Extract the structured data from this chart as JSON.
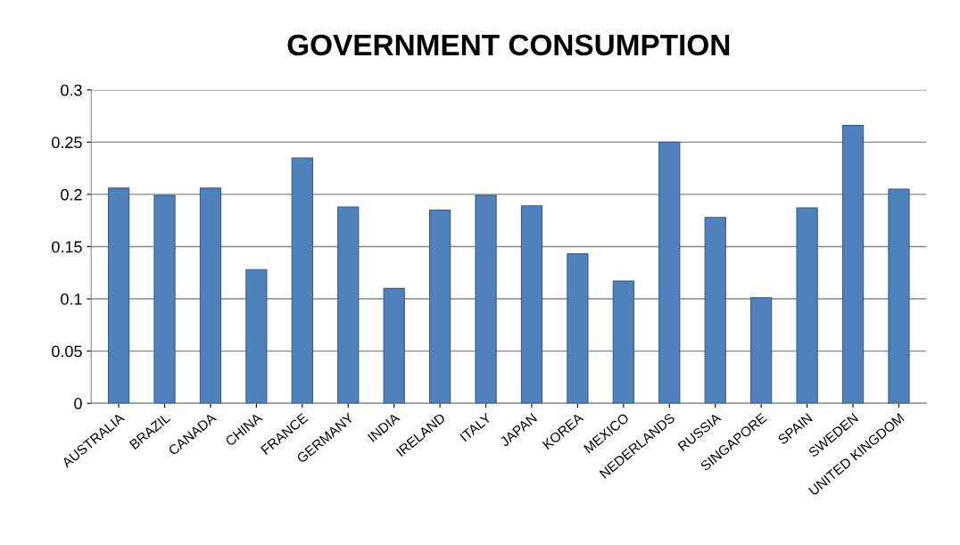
{
  "chart_data": {
    "type": "bar",
    "title": "GOVERNMENT CONSUMPTION",
    "categories": [
      "AUSTRALIA",
      "BRAZIL",
      "CANADA",
      "CHINA",
      "FRANCE",
      "GERMANY",
      "INDIA",
      "IRELAND",
      "ITALY",
      "JAPAN",
      "KOREA",
      "MEXICO",
      "NEDERLANDS",
      "RUSSIA",
      "SINGAPORE",
      "SPAIN",
      "SWEDEN",
      "UNITED KINGDOM"
    ],
    "values": [
      0.206,
      0.199,
      0.206,
      0.128,
      0.235,
      0.188,
      0.11,
      0.185,
      0.199,
      0.189,
      0.143,
      0.117,
      0.25,
      0.178,
      0.101,
      0.187,
      0.266,
      0.205
    ],
    "color": "#4f81bd",
    "ylim": [
      0,
      0.3
    ],
    "yticks": [
      0,
      0.05,
      0.1,
      0.15,
      0.2,
      0.25,
      0.3
    ],
    "grid": "y",
    "legend": false
  }
}
